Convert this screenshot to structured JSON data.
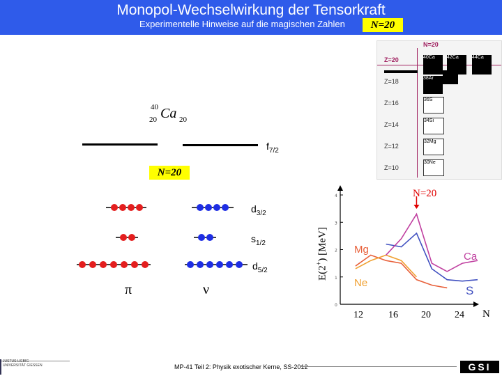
{
  "header": {
    "title": "Monopol-Wechselwirkung der Tensorkraft",
    "subtitle": "Experimentelle Hinweise auf die magischen Zahlen",
    "magic_label": "N=20"
  },
  "nucleus": {
    "mass": "40",
    "charge": "20",
    "symbol": "Ca",
    "neutrons": "20"
  },
  "levels": {
    "f72": "f7/2",
    "f72_main": "f",
    "f72_sub": "7/2",
    "n20_label": "N=20",
    "d32_main": "d",
    "d32_sub": "3/2",
    "s12_main": "s",
    "s12_sub": "1/2",
    "d52_main": "d",
    "d52_sub": "5/2",
    "pi": "π",
    "nu": "ν"
  },
  "chart": {
    "ylabel": "E(2",
    "ylabel_sup": "+",
    "ylabel_end": ") [MeV]",
    "marker_label": "N=20",
    "xlabel": "N",
    "xticks": [
      "12",
      "16",
      "20",
      "24"
    ],
    "yticks": [
      "0",
      "1",
      "2",
      "3",
      "4"
    ],
    "series_labels": {
      "mg": "Mg",
      "ca": "Ca",
      "ne": "Ne",
      "s": "S"
    }
  },
  "chart_data": {
    "type": "line",
    "xlabel": "N",
    "ylabel": "E(2+) [MeV]",
    "ylim": [
      0,
      4
    ],
    "xlim": [
      10,
      28
    ],
    "series": [
      {
        "name": "Mg",
        "color": "#e8603a",
        "x": [
          12,
          14,
          16,
          18,
          20,
          22,
          24
        ],
        "y": [
          1.4,
          1.8,
          1.6,
          1.5,
          0.9,
          0.7,
          0.6
        ]
      },
      {
        "name": "Ne",
        "color": "#f0a030",
        "x": [
          12,
          14,
          16,
          18,
          20
        ],
        "y": [
          1.3,
          1.6,
          1.8,
          1.6,
          1.0
        ]
      },
      {
        "name": "S",
        "color": "#4050c0",
        "x": [
          16,
          18,
          20,
          22,
          24,
          26,
          28
        ],
        "y": [
          2.2,
          2.1,
          2.6,
          1.3,
          0.9,
          0.85,
          0.9
        ]
      },
      {
        "name": "Ca",
        "color": "#c040a0",
        "x": [
          16,
          18,
          20,
          22,
          24,
          26,
          28
        ],
        "y": [
          1.8,
          2.4,
          3.3,
          1.5,
          1.2,
          1.5,
          1.6
        ]
      }
    ]
  },
  "nuclide_chart": {
    "n_label": "N=20",
    "rows": [
      "Z=20",
      "Z=18",
      "Z=16",
      "Z=14",
      "Z=12",
      "Z=10"
    ],
    "cells": [
      "40Ca",
      "42Ca",
      "44Ca",
      "38Ar",
      "36S",
      "34Si",
      "32Mg",
      "30Ne"
    ]
  },
  "footer": {
    "text": "MP-41 Teil 2: Physik exotischer Kerne, SS-2012"
  },
  "logos": {
    "left": "JUSTUS-LIEBIG UNIVERSITÄT GIESSEN",
    "right": "GSI"
  }
}
